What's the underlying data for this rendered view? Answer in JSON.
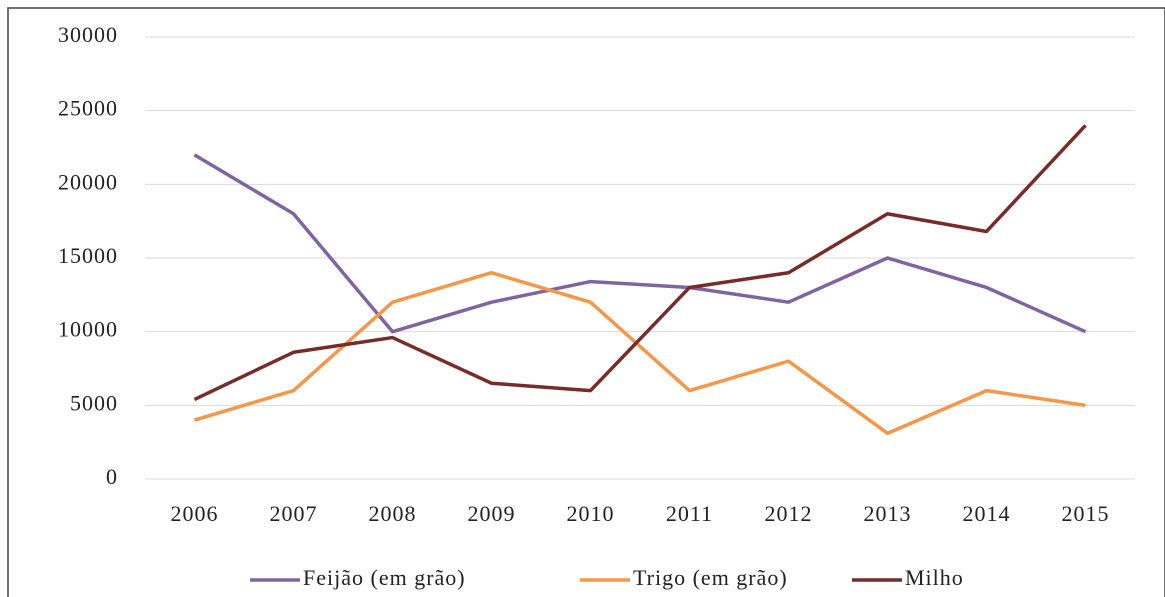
{
  "chart_data": {
    "type": "line",
    "categories": [
      "2006",
      "2007",
      "2008",
      "2009",
      "2010",
      "2011",
      "2012",
      "2013",
      "2014",
      "2015"
    ],
    "series": [
      {
        "name": "Feijão (em grão)",
        "color": "#8064a2",
        "values": [
          22000,
          18000,
          10000,
          12000,
          13400,
          13000,
          12000,
          15000,
          13000,
          10000
        ]
      },
      {
        "name": "Trigo (em grão)",
        "color": "#f79646",
        "values": [
          4000,
          6000,
          12000,
          14000,
          12000,
          6000,
          8000,
          3100,
          6000,
          5000
        ]
      },
      {
        "name": "Milho",
        "color": "#772c2a",
        "values": [
          5400,
          8600,
          9600,
          6500,
          6000,
          13000,
          14000,
          18000,
          16800,
          24000
        ]
      }
    ],
    "ylim": [
      0,
      30000
    ],
    "yticks": [
      0,
      5000,
      10000,
      15000,
      20000,
      25000,
      30000
    ],
    "grid": true,
    "legend": "bottom"
  }
}
